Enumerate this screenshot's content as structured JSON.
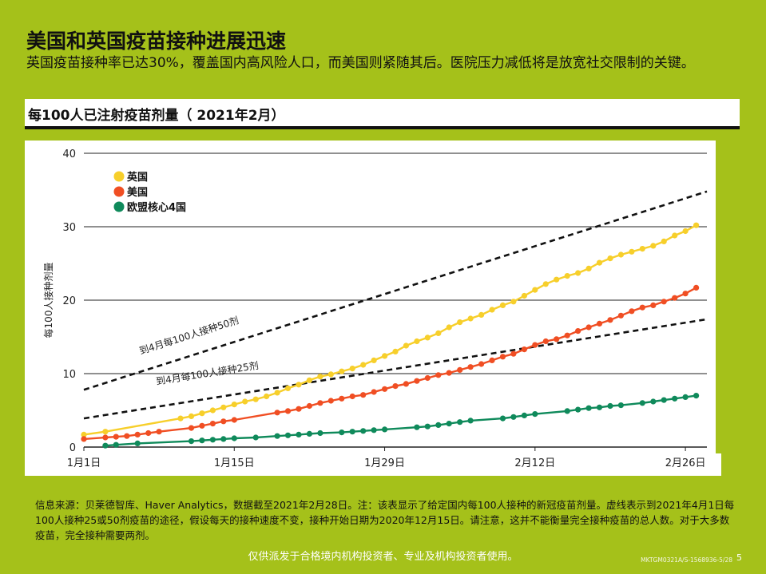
{
  "header": {
    "title": "美国和英国疫苗接种进展迅速",
    "subtitle": "英国疫苗接种率已达30%，覆盖国内高风险人口，而美国则紧随其后。医院压力减低将是放宽社交限制的关键。",
    "chart_heading": "每100人已注射疫苗剂量（ 2021年2月）"
  },
  "chart_data": {
    "type": "line",
    "title": "每100人已注射疫苗剂量（ 2021年2月）",
    "ylabel": "每100人接种剂量",
    "xlabel": "",
    "ylim": [
      0,
      40
    ],
    "yticks": [
      0,
      10,
      20,
      30,
      40
    ],
    "xlim": [
      "2021-01-01",
      "2021-02-28"
    ],
    "xticks": [
      {
        "date": "2021-01-01",
        "label": "1月1日"
      },
      {
        "date": "2021-01-15",
        "label": "1月15日"
      },
      {
        "date": "2021-01-29",
        "label": "1月29日"
      },
      {
        "date": "2021-02-12",
        "label": "2月12日"
      },
      {
        "date": "2021-02-26",
        "label": "2月26日"
      }
    ],
    "grid": "horizontal",
    "legend_position": "top-left",
    "series": [
      {
        "name": "英国",
        "color": "#f7cf2b",
        "style": "line-dots",
        "points": [
          [
            "2021-01-01",
            1.7
          ],
          [
            "2021-01-03",
            2.1
          ],
          [
            "2021-01-10",
            3.9
          ],
          [
            "2021-01-11",
            4.2
          ],
          [
            "2021-01-12",
            4.6
          ],
          [
            "2021-01-13",
            5.0
          ],
          [
            "2021-01-14",
            5.4
          ],
          [
            "2021-01-15",
            5.8
          ],
          [
            "2021-01-16",
            6.2
          ],
          [
            "2021-01-17",
            6.5
          ],
          [
            "2021-01-18",
            6.9
          ],
          [
            "2021-01-19",
            7.4
          ],
          [
            "2021-01-20",
            8.0
          ],
          [
            "2021-01-21",
            8.5
          ],
          [
            "2021-01-22",
            9.1
          ],
          [
            "2021-01-23",
            9.6
          ],
          [
            "2021-01-24",
            9.9
          ],
          [
            "2021-01-25",
            10.3
          ],
          [
            "2021-01-26",
            10.7
          ],
          [
            "2021-01-27",
            11.2
          ],
          [
            "2021-01-28",
            11.8
          ],
          [
            "2021-01-29",
            12.4
          ],
          [
            "2021-01-30",
            13.0
          ],
          [
            "2021-01-31",
            13.8
          ],
          [
            "2021-02-01",
            14.4
          ],
          [
            "2021-02-02",
            14.9
          ],
          [
            "2021-02-03",
            15.5
          ],
          [
            "2021-02-04",
            16.3
          ],
          [
            "2021-02-05",
            17.0
          ],
          [
            "2021-02-06",
            17.5
          ],
          [
            "2021-02-07",
            18.0
          ],
          [
            "2021-02-08",
            18.7
          ],
          [
            "2021-02-09",
            19.3
          ],
          [
            "2021-02-10",
            19.8
          ],
          [
            "2021-02-11",
            20.6
          ],
          [
            "2021-02-12",
            21.4
          ],
          [
            "2021-02-13",
            22.2
          ],
          [
            "2021-02-14",
            22.8
          ],
          [
            "2021-02-15",
            23.3
          ],
          [
            "2021-02-16",
            23.7
          ],
          [
            "2021-02-17",
            24.3
          ],
          [
            "2021-02-18",
            25.1
          ],
          [
            "2021-02-19",
            25.7
          ],
          [
            "2021-02-20",
            26.2
          ],
          [
            "2021-02-21",
            26.6
          ],
          [
            "2021-02-22",
            27.0
          ],
          [
            "2021-02-23",
            27.4
          ],
          [
            "2021-02-24",
            28.0
          ],
          [
            "2021-02-25",
            28.8
          ],
          [
            "2021-02-26",
            29.4
          ],
          [
            "2021-02-27",
            30.2
          ]
        ]
      },
      {
        "name": "美国",
        "color": "#f04e23",
        "style": "line-dots",
        "points": [
          [
            "2021-01-01",
            1.1
          ],
          [
            "2021-01-03",
            1.3
          ],
          [
            "2021-01-04",
            1.4
          ],
          [
            "2021-01-05",
            1.5
          ],
          [
            "2021-01-06",
            1.7
          ],
          [
            "2021-01-07",
            1.9
          ],
          [
            "2021-01-08",
            2.1
          ],
          [
            "2021-01-11",
            2.6
          ],
          [
            "2021-01-12",
            2.9
          ],
          [
            "2021-01-13",
            3.2
          ],
          [
            "2021-01-14",
            3.5
          ],
          [
            "2021-01-15",
            3.7
          ],
          [
            "2021-01-19",
            4.7
          ],
          [
            "2021-01-20",
            4.9
          ],
          [
            "2021-01-21",
            5.2
          ],
          [
            "2021-01-22",
            5.6
          ],
          [
            "2021-01-23",
            6.0
          ],
          [
            "2021-01-24",
            6.3
          ],
          [
            "2021-01-25",
            6.6
          ],
          [
            "2021-01-26",
            6.9
          ],
          [
            "2021-01-27",
            7.1
          ],
          [
            "2021-01-28",
            7.5
          ],
          [
            "2021-01-29",
            7.9
          ],
          [
            "2021-01-30",
            8.3
          ],
          [
            "2021-01-31",
            8.6
          ],
          [
            "2021-02-01",
            9.0
          ],
          [
            "2021-02-02",
            9.4
          ],
          [
            "2021-02-03",
            9.8
          ],
          [
            "2021-02-04",
            10.1
          ],
          [
            "2021-02-05",
            10.5
          ],
          [
            "2021-02-06",
            10.9
          ],
          [
            "2021-02-07",
            11.3
          ],
          [
            "2021-02-08",
            11.8
          ],
          [
            "2021-02-09",
            12.3
          ],
          [
            "2021-02-10",
            12.7
          ],
          [
            "2021-02-11",
            13.3
          ],
          [
            "2021-02-12",
            13.9
          ],
          [
            "2021-02-13",
            14.4
          ],
          [
            "2021-02-14",
            14.7
          ],
          [
            "2021-02-15",
            15.2
          ],
          [
            "2021-02-16",
            15.8
          ],
          [
            "2021-02-17",
            16.3
          ],
          [
            "2021-02-18",
            16.8
          ],
          [
            "2021-02-19",
            17.3
          ],
          [
            "2021-02-20",
            17.9
          ],
          [
            "2021-02-21",
            18.5
          ],
          [
            "2021-02-22",
            19.0
          ],
          [
            "2021-02-23",
            19.3
          ],
          [
            "2021-02-24",
            19.8
          ],
          [
            "2021-02-25",
            20.3
          ],
          [
            "2021-02-26",
            20.9
          ],
          [
            "2021-02-27",
            21.7
          ]
        ]
      },
      {
        "name": "欧盟核心4国",
        "color": "#0f8a5b",
        "style": "line-dots",
        "points": [
          [
            "2021-01-03",
            0.2
          ],
          [
            "2021-01-04",
            0.3
          ],
          [
            "2021-01-06",
            0.5
          ],
          [
            "2021-01-11",
            0.8
          ],
          [
            "2021-01-12",
            0.9
          ],
          [
            "2021-01-13",
            1.0
          ],
          [
            "2021-01-14",
            1.1
          ],
          [
            "2021-01-15",
            1.2
          ],
          [
            "2021-01-17",
            1.3
          ],
          [
            "2021-01-19",
            1.5
          ],
          [
            "2021-01-20",
            1.6
          ],
          [
            "2021-01-21",
            1.7
          ],
          [
            "2021-01-22",
            1.8
          ],
          [
            "2021-01-23",
            1.9
          ],
          [
            "2021-01-25",
            2.0
          ],
          [
            "2021-01-26",
            2.1
          ],
          [
            "2021-01-27",
            2.2
          ],
          [
            "2021-01-28",
            2.3
          ],
          [
            "2021-01-29",
            2.4
          ],
          [
            "2021-02-01",
            2.7
          ],
          [
            "2021-02-02",
            2.8
          ],
          [
            "2021-02-03",
            3.0
          ],
          [
            "2021-02-04",
            3.2
          ],
          [
            "2021-02-05",
            3.4
          ],
          [
            "2021-02-06",
            3.6
          ],
          [
            "2021-02-09",
            3.9
          ],
          [
            "2021-02-10",
            4.1
          ],
          [
            "2021-02-11",
            4.3
          ],
          [
            "2021-02-12",
            4.5
          ],
          [
            "2021-02-15",
            4.9
          ],
          [
            "2021-02-16",
            5.1
          ],
          [
            "2021-02-17",
            5.3
          ],
          [
            "2021-02-18",
            5.4
          ],
          [
            "2021-02-19",
            5.6
          ],
          [
            "2021-02-20",
            5.7
          ],
          [
            "2021-02-22",
            6.0
          ],
          [
            "2021-02-23",
            6.2
          ],
          [
            "2021-02-24",
            6.4
          ],
          [
            "2021-02-25",
            6.6
          ],
          [
            "2021-02-26",
            6.8
          ],
          [
            "2021-02-27",
            7.0
          ]
        ]
      }
    ],
    "reference_lines": [
      {
        "label": "到4月每100人接种50剂",
        "color": "#111111",
        "style": "dashed",
        "points": [
          [
            "2021-01-01",
            7.8
          ],
          [
            "2021-02-28",
            34.8
          ]
        ]
      },
      {
        "label": "到4月每100人接种25剂",
        "color": "#111111",
        "style": "dashed",
        "points": [
          [
            "2021-01-01",
            3.9
          ],
          [
            "2021-02-28",
            17.4
          ]
        ]
      }
    ]
  },
  "footnote": "信息来源：贝莱德智库、Haver Analytics，数据截至2021年2月28日。注：该表显示了给定国内每100人接种的新冠疫苗剂量。虚线表示到2021年4月1日每100人接种25或50剂疫苗的途径，假设每天的接种速度不变，接种开始日期为2020年12月15日。请注意，这并不能衡量完全接种疫苗的总人数。对于大多数疫苗，完全接种需要两剂。",
  "footer": "仅供派发于合格境内机构投资者、专业及机构投资者使用。",
  "code": "MKTGM0321A/S-1568936-5/28",
  "page": "5"
}
